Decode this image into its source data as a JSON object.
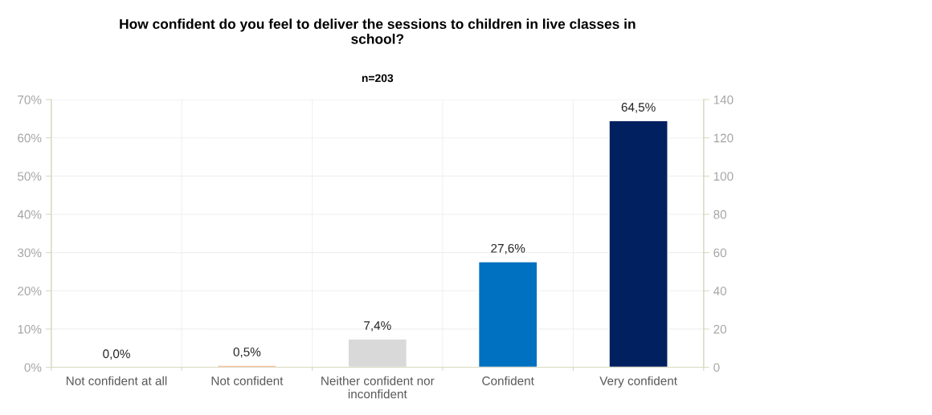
{
  "chart_data": {
    "type": "bar",
    "title": "How confident do you feel to deliver the sessions to children in live classes in\nschool?",
    "subtitle": "n=203",
    "categories": [
      "Not confident at all",
      "Not confident",
      "Neither confident nor\ninconfident",
      "Confident",
      "Very confident"
    ],
    "values": [
      0.0,
      0.5,
      7.4,
      27.6,
      64.5
    ],
    "colors": [
      null,
      "#f4b183",
      "#d9d9d9",
      "#0070c0",
      "#002060"
    ],
    "value_labels": [
      "0,0%",
      "0,5%",
      "7,4%",
      "27,6%",
      "64,5%"
    ],
    "ylim": [
      0,
      70
    ],
    "yticks": [
      {
        "value": 0,
        "label": "0%"
      },
      {
        "value": 10,
        "label": "10%"
      },
      {
        "value": 20,
        "label": "20%"
      },
      {
        "value": 30,
        "label": "30%"
      },
      {
        "value": 40,
        "label": "40%"
      },
      {
        "value": 50,
        "label": "50%"
      },
      {
        "value": 60,
        "label": "60%"
      },
      {
        "value": 70,
        "label": "70%"
      }
    ],
    "y2lim": [
      0,
      140
    ],
    "y2ticks": [
      0,
      20,
      40,
      60,
      80,
      100,
      120,
      140
    ],
    "grid": true
  }
}
